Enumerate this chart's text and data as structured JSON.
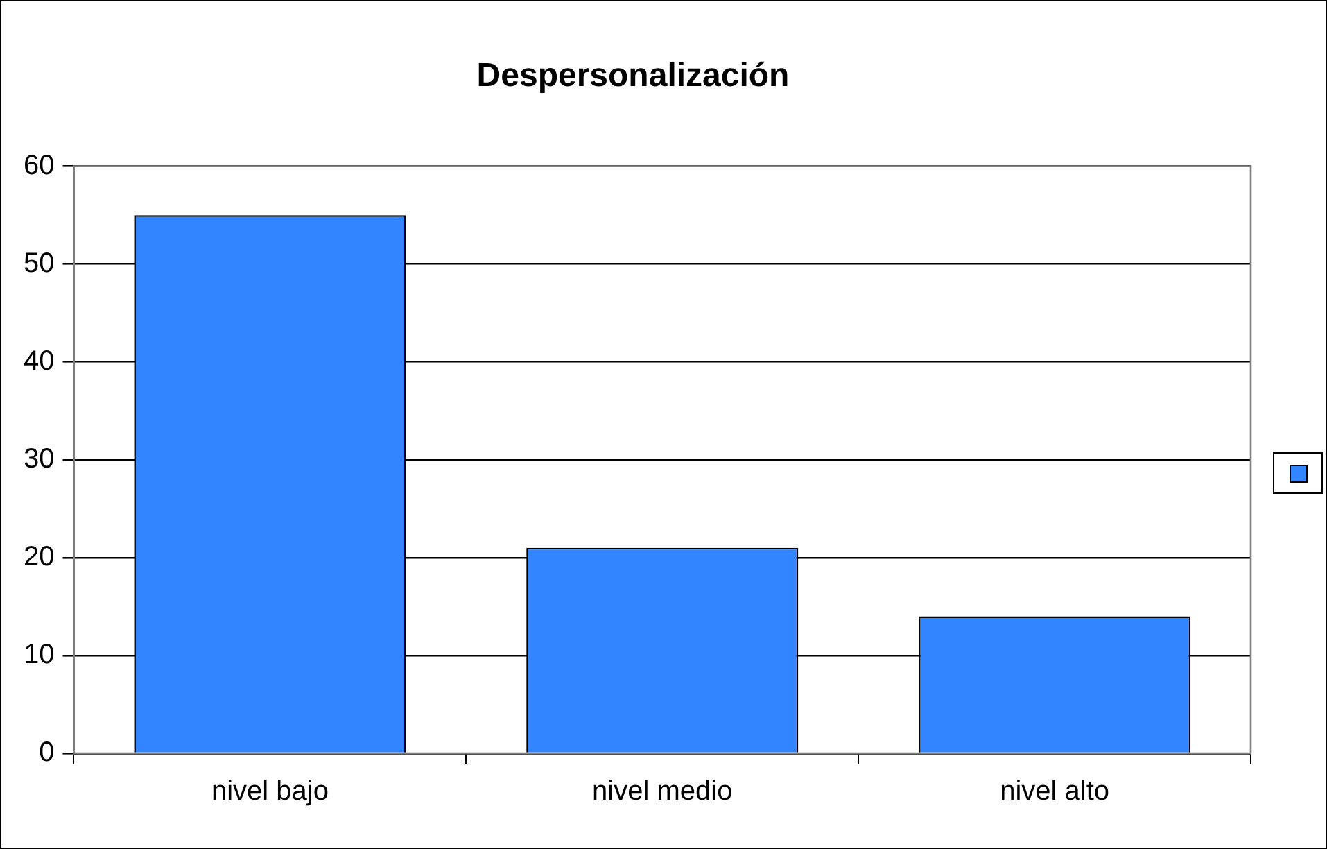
{
  "chart_data": {
    "type": "bar",
    "title": "Despersonalización",
    "categories": [
      "nivel bajo",
      "nivel medio",
      "nivel alto"
    ],
    "series": [
      {
        "color": "#3385ff",
        "values": [
          55,
          21,
          14
        ]
      }
    ],
    "ylim": [
      0,
      60
    ],
    "yticks": [
      0,
      10,
      20,
      30,
      40,
      50,
      60
    ],
    "grid": "y"
  }
}
